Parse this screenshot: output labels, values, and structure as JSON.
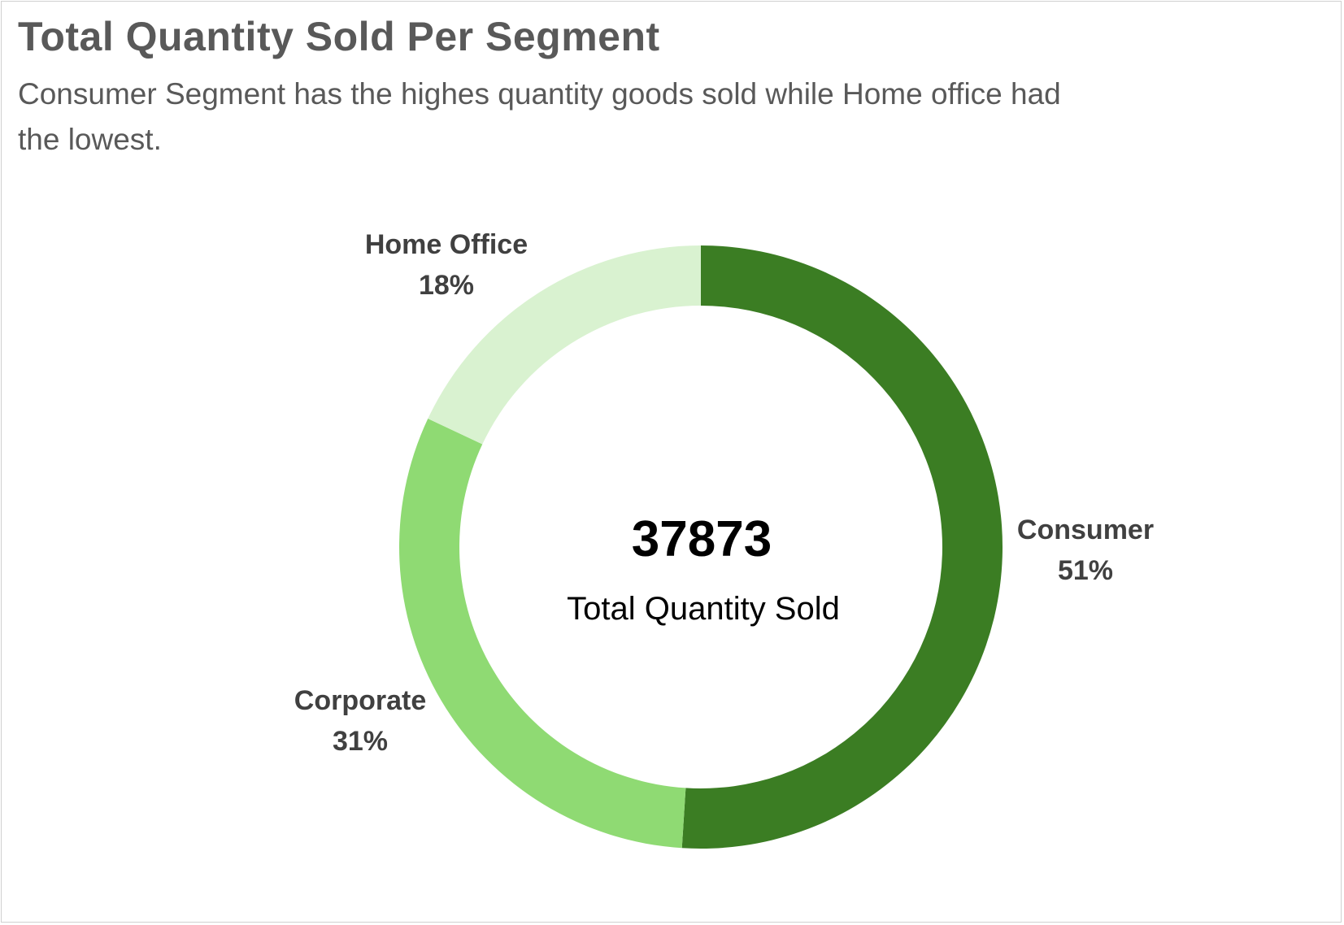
{
  "chart_data": {
    "type": "pie",
    "variant": "donut",
    "title": "Total Quantity Sold Per Segment",
    "subtitle": "Consumer Segment has the highes quantity goods sold while Home office had the lowest.",
    "center": {
      "value": "37873",
      "caption": "Total Quantity Sold"
    },
    "categories": [
      "Consumer",
      "Corporate",
      "Home Office"
    ],
    "values": [
      51,
      31,
      18
    ],
    "labels": [
      "51%",
      "31%",
      "18%"
    ],
    "colors": [
      "#3b7d23",
      "#8fda73",
      "#d9f2d0"
    ],
    "start_angle": "12 o'clock",
    "direction": "clockwise",
    "legend": "none"
  }
}
